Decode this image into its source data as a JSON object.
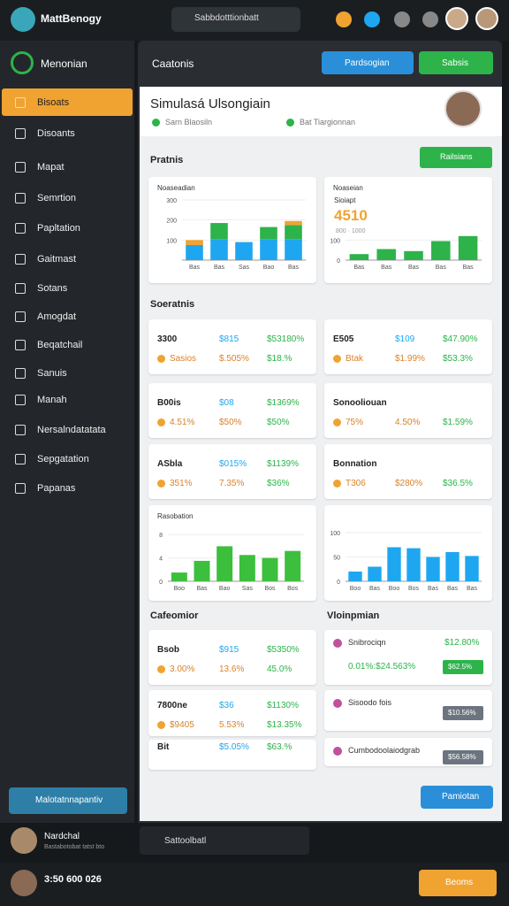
{
  "header": {
    "brand": "MattBenogy",
    "search": "Sabbdotttionbatt"
  },
  "sidebar": {
    "title": "Menonian",
    "items": [
      "Bisoats",
      "Disoants",
      "Mapat",
      "Semrtion",
      "Papltation",
      "Gaitmast",
      "Sotans",
      "Amogdat",
      "Beqatchail",
      "Sanuis",
      "Manah",
      "Nersalndatatata",
      "Sepgatation",
      "Papanas"
    ],
    "button": "Malotatnnapantiv",
    "user": "Nardchal",
    "user_sub": "Bastabotobat tatst bto"
  },
  "main": {
    "title": "Caatonis",
    "button_primary": "Pardsogian",
    "button_secondary": "Sabsis",
    "profile": {
      "name": "Simulasá Ulsongiain",
      "tags": [
        "Sarn Blaosiln",
        "Bat Tiargionnan"
      ]
    },
    "section_charts": "Pratnis",
    "section_charts_button": "Railsians",
    "chart_left": {
      "title": "Noaseadian",
      "categories": [
        "Bas",
        "Bas",
        "Sas",
        "Bao",
        "Bas"
      ],
      "series": [
        {
          "color": "#1ea7f0",
          "values": [
            75,
            105,
            90,
            105,
            105
          ]
        },
        {
          "color": "#2db34a",
          "values": [
            0,
            80,
            0,
            60,
            70
          ]
        },
        {
          "color": "#f0a330",
          "values": [
            25,
            0,
            0,
            0,
            20
          ]
        }
      ],
      "ylim": [
        0,
        300
      ],
      "yticks": [
        100,
        200,
        300
      ]
    },
    "chart_right": {
      "title": "Noaseian",
      "big": "4510",
      "sub": "Sioiapt",
      "note": "800 · 1000",
      "categories": [
        "Bas",
        "Bas",
        "Bas",
        "Bas",
        "Bas"
      ],
      "series": [
        {
          "color": "#2db34a",
          "values": [
            30,
            55,
            45,
            95,
            120
          ]
        }
      ],
      "ylim": [
        0,
        150
      ],
      "yticks": [
        0,
        100
      ]
    },
    "section_stats": "Soeratnis",
    "stats": [
      {
        "cells": [
          "3300",
          "$815",
          "$53180%",
          "Sasios",
          "$.505%",
          "$18.%"
        ]
      },
      {
        "cells": [
          "E505",
          "$109",
          "$47.90%",
          "Btak",
          "$1.99%",
          "$53.3%"
        ]
      },
      {
        "cells": [
          "B00is",
          "$08",
          "$1369%",
          "4.51%",
          "$50%",
          "$50%"
        ]
      },
      {
        "cells": [
          "Sonooliouan",
          "",
          "",
          "75%",
          "4.50%",
          "$1.59%"
        ]
      },
      {
        "cells": [
          "ASbla",
          "$015%",
          "$1139%",
          "351%",
          "7.35%",
          "$36%"
        ]
      },
      {
        "cells": [
          "Bonnation",
          "",
          "",
          "T306",
          "$280%",
          "$36.5%"
        ]
      }
    ],
    "chart_bottom_left": {
      "title": "Rasobation",
      "categories": [
        "Boo",
        "Bas",
        "Bao",
        "Sas",
        "Bos",
        "Bos"
      ],
      "series": [
        {
          "color": "#3cbf3c",
          "values": [
            1.5,
            3.5,
            6,
            4.5,
            4,
            5.2
          ]
        }
      ],
      "ylim": [
        0,
        10
      ],
      "yticks": [
        0,
        4,
        8
      ]
    },
    "chart_bottom_right": {
      "categories": [
        "Boo",
        "Bas",
        "Boo",
        "Bos",
        "Bas",
        "Bas",
        "Bas"
      ],
      "series": [
        {
          "color": "#1ea7f0",
          "values": [
            20,
            30,
            70,
            68,
            50,
            60,
            52
          ]
        }
      ],
      "ylim": [
        0,
        120
      ],
      "yticks": [
        0,
        50,
        100
      ]
    },
    "section_left": "Cafeomior",
    "section_right": "Vloinpmian",
    "list_left": [
      {
        "cells": [
          "Bsob",
          "$915",
          "$5350%",
          "3.00%",
          "13.6%",
          "45.0%"
        ]
      },
      {
        "cells": [
          "7800ne",
          "$36",
          "$1130%",
          "$9405",
          "5.53%",
          "$13.35%"
        ]
      },
      {
        "cells": [
          "Bit",
          "$5.05%",
          "$63.%"
        ]
      }
    ],
    "list_right": [
      {
        "title": "Snibrociqn",
        "value": "$12.80%",
        "sub": "0.01%:$24.563%",
        "badge": "$62.5%"
      },
      {
        "title": "Sisoodo fois",
        "badge": "$10.56%"
      },
      {
        "title": "Cumbodoolaiodgrab",
        "badge": "$56.58%"
      }
    ],
    "footer_button": "Pamiotan"
  },
  "bottombar": {
    "search": "Sattoolbatl",
    "status": "3:50 600 026",
    "button": "Beoms"
  }
}
